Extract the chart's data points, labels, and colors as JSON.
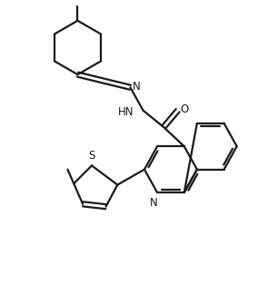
{
  "bg_color": "#ffffff",
  "line_color": "#1a1a1a",
  "line_width": 1.6,
  "figsize": [
    2.84,
    3.14
  ],
  "dpi": 100,
  "xlim": [
    0,
    10
  ],
  "ylim": [
    0,
    11
  ]
}
